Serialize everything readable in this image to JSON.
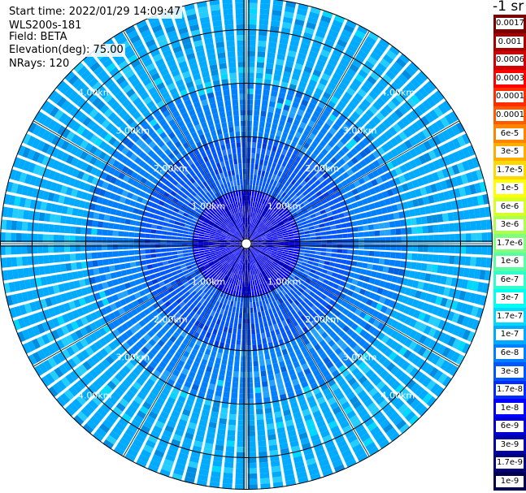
{
  "header": {
    "start_time": "Start time: 2022/01/29 14:09:47",
    "instrument": "WLS200s-181",
    "field": "Field: BETA",
    "elevation": "Elevation(deg): 75.00",
    "nrays": "NRays: 120"
  },
  "chart_data": {
    "type": "heatmap",
    "projection": "polar-ppi",
    "field": "BETA",
    "elevation_deg": 75.0,
    "n_rays": 120,
    "max_range_km": 4.6,
    "range_rings_km": [
      1.0,
      2.0,
      3.0,
      4.0
    ],
    "ring_labels": [
      "1.00km",
      "2.00km",
      "3.00km",
      "4.00km"
    ],
    "colorbar_title": "-1 sr",
    "colorbar_scale": "log",
    "colorbar_levels": [
      {
        "label": "0.0017",
        "color": "#7a0000"
      },
      {
        "label": "0.001",
        "color": "#a80000"
      },
      {
        "label": "0.0006",
        "color": "#d20000"
      },
      {
        "label": "0.0003",
        "color": "#ff0000"
      },
      {
        "label": "0.00017",
        "color": "#ff2e00"
      },
      {
        "label": "0.0001",
        "color": "#ff5a00"
      },
      {
        "label": "6e-5",
        "color": "#ff8400"
      },
      {
        "label": "3e-5",
        "color": "#ffad00"
      },
      {
        "label": "1.7e-5",
        "color": "#ffd800"
      },
      {
        "label": "1e-5",
        "color": "#ffff00"
      },
      {
        "label": "6e-6",
        "color": "#d6ff29"
      },
      {
        "label": "3e-6",
        "color": "#adff52"
      },
      {
        "label": "1.7e-6",
        "color": "#84ff7b"
      },
      {
        "label": "1e-6",
        "color": "#5aff a4"
      },
      {
        "label": "6e-7",
        "color": "#30ffcd"
      },
      {
        "label": "3e-7",
        "color": "#00fff0"
      },
      {
        "label": "1.7e-7",
        "color": "#00d8ff"
      },
      {
        "label": "1e-7",
        "color": "#00aaff"
      },
      {
        "label": "6e-8",
        "color": "#0080ff"
      },
      {
        "label": "3e-8",
        "color": "#0056ff"
      },
      {
        "label": "1.7e-8",
        "color": "#002cff"
      },
      {
        "label": "1e-8",
        "color": "#0000ff"
      },
      {
        "label": "6e-9",
        "color": "#0000d2"
      },
      {
        "label": "3e-9",
        "color": "#0000a8"
      },
      {
        "label": "1.7e-9",
        "color": "#00007a"
      },
      {
        "label": "1e-9",
        "color": "#00004d"
      }
    ],
    "dominant_value_by_range": [
      {
        "range_km": [
          0.0,
          1.0
        ],
        "value": "1e-8"
      },
      {
        "range_km": [
          1.0,
          2.0
        ],
        "value": "3e-8"
      },
      {
        "range_km": [
          2.0,
          3.0
        ],
        "value": "6e-8"
      },
      {
        "range_km": [
          3.0,
          4.6
        ],
        "value": "1e-7"
      }
    ]
  }
}
